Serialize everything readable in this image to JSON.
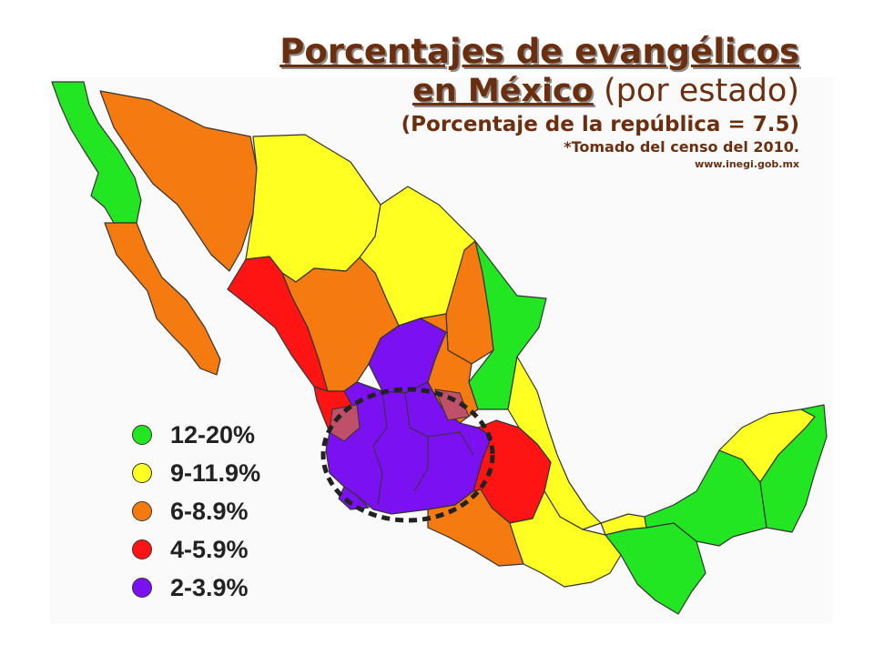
{
  "title": {
    "line1": "Porcentajes de evangélicos",
    "line2_underlined": "en México",
    "line2_rest": " (por estado)",
    "line3": "(Porcentaje de la república = 7.5)",
    "line4": "*Tomado del censo del 2010.",
    "line5": "www.inegi.gob.mx"
  },
  "colors": {
    "green": "#22e622",
    "yellow": "#ffff22",
    "orange": "#f57a10",
    "red": "#ff1414",
    "purple": "#7b10f0",
    "title": "#6b2f0f"
  },
  "legend": [
    {
      "label": "12-20%",
      "color": "#22e622"
    },
    {
      "label": "9-11.9%",
      "color": "#ffff22"
    },
    {
      "label": "6-8.9%",
      "color": "#f57a10"
    },
    {
      "label": "4-5.9%",
      "color": "#ff1414"
    },
    {
      "label": "2-3.9%",
      "color": "#7b10f0"
    }
  ]
}
